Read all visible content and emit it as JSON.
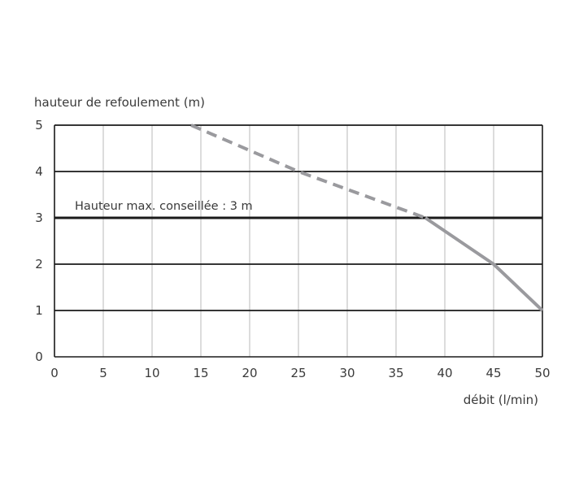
{
  "chart_data": {
    "type": "line",
    "ylabel": "hauteur de refoulement (m)",
    "xlabel": "débit (l/min)",
    "xlim": [
      0,
      50
    ],
    "ylim": [
      0,
      5
    ],
    "x_ticks": [
      0,
      5,
      10,
      15,
      20,
      25,
      30,
      35,
      40,
      45,
      50
    ],
    "y_ticks": [
      0,
      1,
      2,
      3,
      4,
      5
    ],
    "grid": true,
    "annotation": {
      "text": "Hauteur max. conseillée : 3 m",
      "y": 3
    },
    "series": [
      {
        "style": "dashed",
        "color": "#9a9a9e",
        "points": [
          [
            14,
            5
          ],
          [
            25,
            4
          ],
          [
            38,
            3
          ]
        ]
      },
      {
        "style": "solid",
        "color": "#9a9a9e",
        "points": [
          [
            38,
            3
          ],
          [
            45,
            2
          ],
          [
            50,
            1
          ]
        ]
      }
    ]
  }
}
